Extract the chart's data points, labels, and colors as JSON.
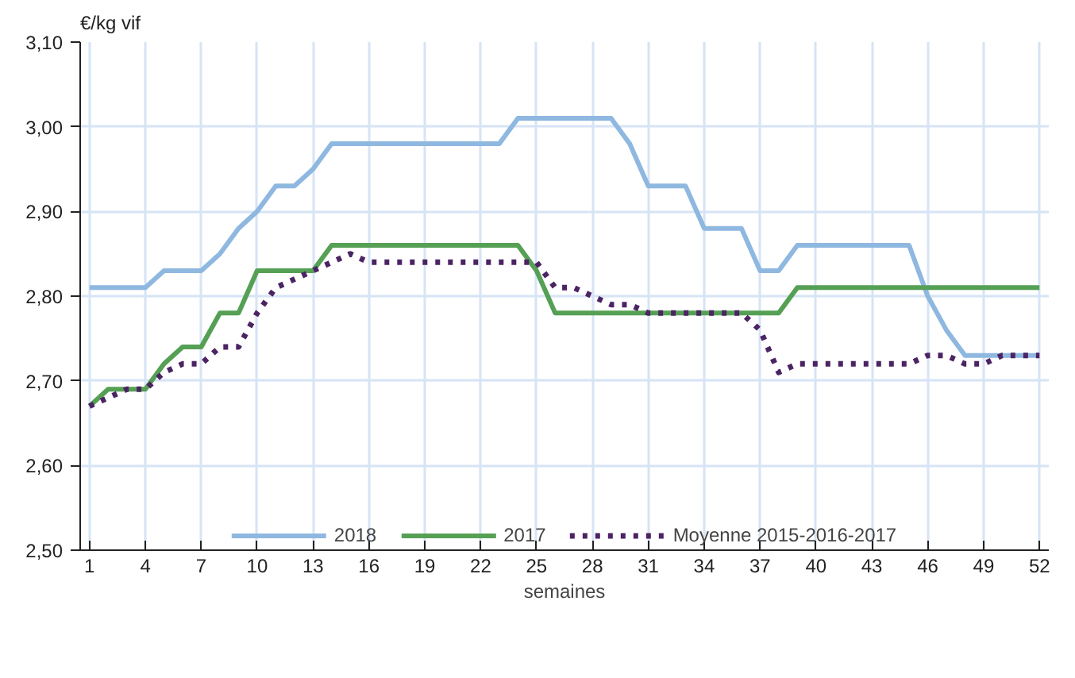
{
  "chart_data": {
    "type": "line",
    "ylabel": "€/kg vif",
    "xlabel": "semaines",
    "x": [
      1,
      2,
      3,
      4,
      5,
      6,
      7,
      8,
      9,
      10,
      11,
      12,
      13,
      14,
      15,
      16,
      17,
      18,
      19,
      20,
      21,
      22,
      23,
      24,
      25,
      26,
      27,
      28,
      29,
      30,
      31,
      32,
      33,
      34,
      35,
      36,
      37,
      38,
      39,
      40,
      41,
      42,
      43,
      44,
      45,
      46,
      47,
      48,
      49,
      50,
      51,
      52
    ],
    "series": [
      {
        "name": "2018",
        "color": "#8fb8e0",
        "line_style": "solid",
        "values": [
          2.81,
          2.81,
          2.81,
          2.81,
          2.83,
          2.83,
          2.83,
          2.85,
          2.88,
          2.9,
          2.93,
          2.93,
          2.95,
          2.98,
          2.98,
          2.98,
          2.98,
          2.98,
          2.98,
          2.98,
          2.98,
          2.98,
          2.98,
          3.01,
          3.01,
          3.01,
          3.01,
          3.01,
          3.01,
          2.98,
          2.93,
          2.93,
          2.93,
          2.88,
          2.88,
          2.88,
          2.83,
          2.83,
          2.86,
          2.86,
          2.86,
          2.86,
          2.86,
          2.86,
          2.86,
          2.8,
          2.76,
          2.73,
          2.73,
          2.73,
          2.73,
          2.73
        ]
      },
      {
        "name": "2017",
        "color": "#55a055",
        "line_style": "solid",
        "values": [
          2.67,
          2.69,
          2.69,
          2.69,
          2.72,
          2.74,
          2.74,
          2.78,
          2.78,
          2.83,
          2.83,
          2.83,
          2.83,
          2.86,
          2.86,
          2.86,
          2.86,
          2.86,
          2.86,
          2.86,
          2.86,
          2.86,
          2.86,
          2.86,
          2.83,
          2.78,
          2.78,
          2.78,
          2.78,
          2.78,
          2.78,
          2.78,
          2.78,
          2.78,
          2.78,
          2.78,
          2.78,
          2.78,
          2.81,
          2.81,
          2.81,
          2.81,
          2.81,
          2.81,
          2.81,
          2.81,
          2.81,
          2.81,
          2.81,
          2.81,
          2.81,
          2.81
        ]
      },
      {
        "name": "Moyenne 2015-2016-2017",
        "color": "#4b2463",
        "line_style": "dotted",
        "values": [
          2.67,
          2.68,
          2.69,
          2.69,
          2.71,
          2.72,
          2.72,
          2.74,
          2.74,
          2.78,
          2.81,
          2.82,
          2.83,
          2.84,
          2.85,
          2.84,
          2.84,
          2.84,
          2.84,
          2.84,
          2.84,
          2.84,
          2.84,
          2.84,
          2.84,
          2.81,
          2.81,
          2.8,
          2.79,
          2.79,
          2.78,
          2.78,
          2.78,
          2.78,
          2.78,
          2.78,
          2.76,
          2.71,
          2.72,
          2.72,
          2.72,
          2.72,
          2.72,
          2.72,
          2.72,
          2.73,
          2.73,
          2.72,
          2.72,
          2.73,
          2.73,
          2.73
        ]
      }
    ],
    "xlim": [
      0.5,
      52.5
    ],
    "xticks": [
      1,
      4,
      7,
      10,
      13,
      16,
      19,
      22,
      25,
      28,
      31,
      34,
      37,
      40,
      43,
      46,
      49,
      52
    ],
    "ylim": [
      2.5,
      3.1
    ],
    "yticks": [
      {
        "value": 2.5,
        "label": "2,50"
      },
      {
        "value": 2.6,
        "label": "2,60"
      },
      {
        "value": 2.7,
        "label": "2,70"
      },
      {
        "value": 2.8,
        "label": "2,80"
      },
      {
        "value": 2.9,
        "label": "2,90"
      },
      {
        "value": 3.0,
        "label": "3,00"
      },
      {
        "value": 3.1,
        "label": "3,10"
      }
    ],
    "grid": true,
    "legend": "bottom",
    "marker": "none"
  }
}
